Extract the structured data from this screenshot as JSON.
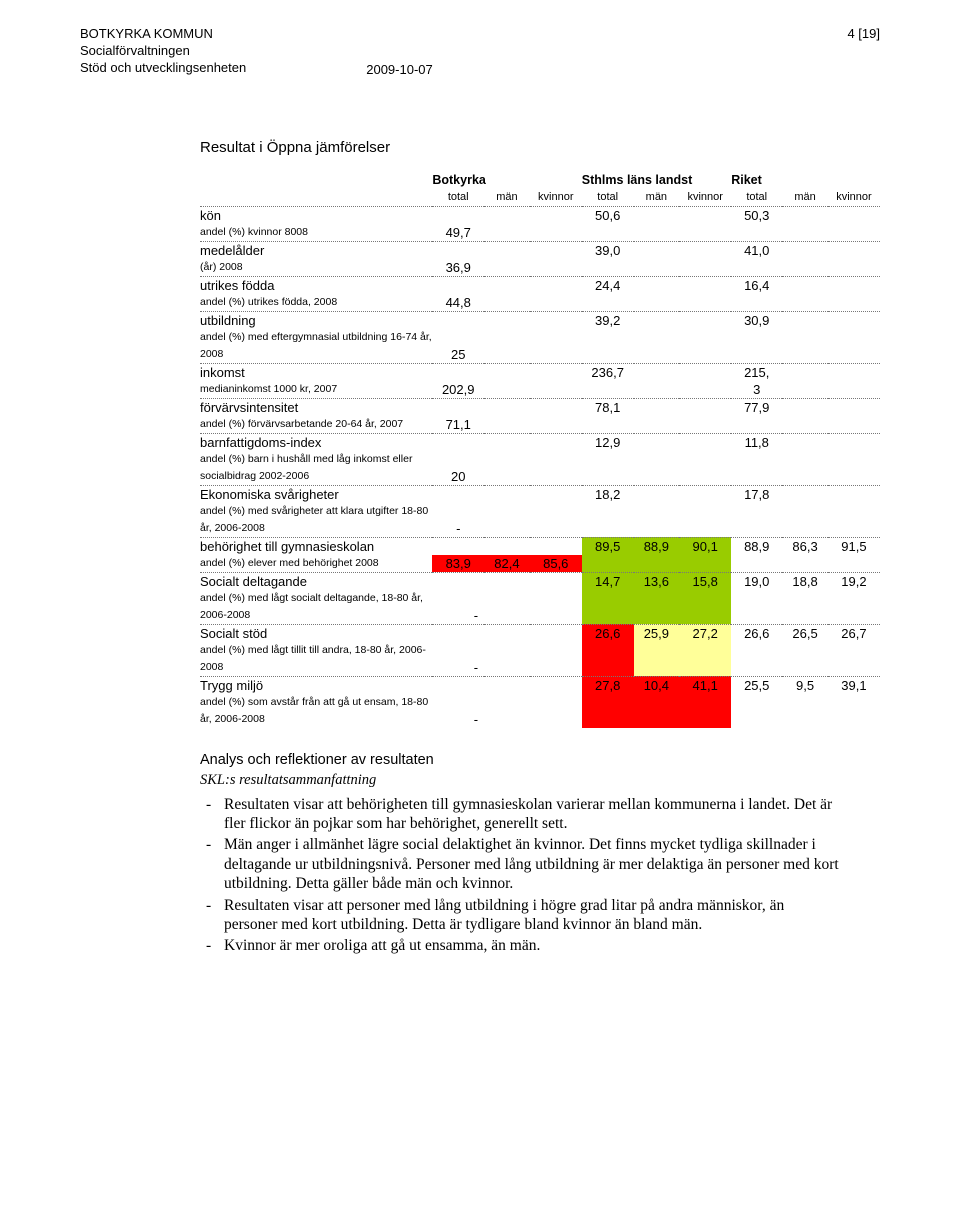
{
  "header": {
    "org1": "BOTKYRKA KOMMUN",
    "org2": "Socialförvaltningen",
    "org3": "Stöd och utvecklingsenheten",
    "date": "2009-10-07",
    "pagenum": "4 [19]"
  },
  "section_title": "Resultat i Öppna jämförelser",
  "groups": {
    "g1": "Botkyrka",
    "g2": "Sthlms läns landst",
    "g3": "Riket"
  },
  "subheaders": {
    "total": "total",
    "man": "män",
    "kvinnor": "kvinnor"
  },
  "colors": {
    "red": "#ff0000",
    "green": "#99cc00",
    "yellow": "#ffff99"
  },
  "rows": [
    {
      "title": "kön",
      "desc": "andel (%) kvinnor 8008",
      "b": [
        "49,7",
        "",
        ""
      ],
      "s": [
        "50,6",
        "",
        ""
      ],
      "r": [
        "50,3",
        "",
        ""
      ],
      "hl": []
    },
    {
      "title": "medelålder",
      "desc": "(år) 2008",
      "b": [
        "36,9",
        "",
        ""
      ],
      "s": [
        "39,0",
        "",
        ""
      ],
      "r": [
        "41,0",
        "",
        ""
      ],
      "hl": []
    },
    {
      "title": "utrikes födda",
      "desc": "andel (%) utrikes födda, 2008",
      "b": [
        "44,8",
        "",
        ""
      ],
      "s": [
        "24,4",
        "",
        ""
      ],
      "r": [
        "16,4",
        "",
        ""
      ],
      "hl": []
    },
    {
      "title": "utbildning",
      "desc": "andel (%) med eftergymnasial utbildning 16-74 år, 2008",
      "b": [
        "25",
        "",
        ""
      ],
      "s": [
        "39,2",
        "",
        ""
      ],
      "r": [
        "30,9",
        "",
        ""
      ],
      "hl": []
    },
    {
      "title": "inkomst",
      "desc": "medianinkomst 1000 kr, 2007",
      "b": [
        "202,9",
        "",
        ""
      ],
      "s": [
        "236,7",
        "",
        ""
      ],
      "r": [
        "215,3",
        "",
        ""
      ],
      "r_split": true,
      "hl": []
    },
    {
      "title": "förvärvsintensitet",
      "desc": "andel (%) förvärvsarbetande 20-64 år, 2007",
      "b": [
        "71,1",
        "",
        ""
      ],
      "s": [
        "78,1",
        "",
        ""
      ],
      "r": [
        "77,9",
        "",
        ""
      ],
      "hl": []
    },
    {
      "title": "barnfattigdoms-index",
      "desc": "andel (%) barn i hushåll med låg inkomst eller socialbidrag 2002-2006",
      "b": [
        "20",
        "",
        ""
      ],
      "s": [
        "12,9",
        "",
        ""
      ],
      "r": [
        "11,8",
        "",
        ""
      ],
      "hl": []
    },
    {
      "title": "Ekonomiska svårigheter",
      "desc": "andel (%) med svårigheter att klara utgifter 18-80 år, 2006-2008",
      "b": [
        "-",
        "",
        ""
      ],
      "s": [
        "18,2",
        "",
        ""
      ],
      "r": [
        "17,8",
        "",
        ""
      ],
      "hl": []
    },
    {
      "title": "behörighet till gymnasieskolan",
      "desc": "andel (%) elever med behörighet 2008",
      "b": [
        "83,9",
        "82,4",
        "85,6"
      ],
      "s": [
        "89,5",
        "88,9",
        "90,1"
      ],
      "r": [
        "88,9",
        "86,3",
        "91,5"
      ],
      "hl": [
        [
          "red",
          "red",
          "red"
        ],
        [
          "green",
          "green",
          "green"
        ],
        [
          "",
          "",
          ""
        ]
      ]
    },
    {
      "title": "Socialt deltagande",
      "desc": "andel (%) med lågt socialt deltagande, 18-80 år, 2006-2008",
      "b": [
        "-",
        "",
        ""
      ],
      "s": [
        "14,7",
        "13,6",
        "15,8"
      ],
      "r": [
        "19,0",
        "18,8",
        "19,2"
      ],
      "hl": [
        [
          "",
          "",
          ""
        ],
        [
          "green",
          "green",
          "green"
        ],
        [
          "",
          "",
          ""
        ]
      ],
      "b_align_right": true
    },
    {
      "title": "Socialt stöd",
      "desc": "andel (%) med lågt tillit till andra, 18-80 år, 2006-2008",
      "b": [
        "-",
        "",
        ""
      ],
      "s": [
        "26,6",
        "25,9",
        "27,2"
      ],
      "r": [
        "26,6",
        "26,5",
        "26,7"
      ],
      "hl": [
        [
          "",
          "",
          ""
        ],
        [
          "red",
          "yellow",
          "yellow"
        ],
        [
          "",
          "",
          ""
        ]
      ],
      "b_align_right": true
    },
    {
      "title": "Trygg miljö",
      "desc": "andel (%) som avstår från att gå ut ensam, 18-80 år, 2006-2008",
      "b": [
        "-",
        "",
        ""
      ],
      "s": [
        "27,8",
        "10,4",
        "41,1"
      ],
      "r": [
        "25,5",
        "9,5",
        "39,1"
      ],
      "hl": [
        [
          "",
          "",
          ""
        ],
        [
          "red",
          "red",
          "red"
        ],
        [
          "",
          "",
          ""
        ]
      ],
      "b_align_right": true
    }
  ],
  "analysis": {
    "heading": "Analys och reflektioner av resultaten",
    "subheading": "SKL:s resultatsammanfattning",
    "bullets": [
      "Resultaten visar att behörigheten till gymnasieskolan varierar mellan kommunerna i landet. Det är fler flickor än pojkar som har behörighet, generellt sett.",
      "Män anger i allmänhet lägre social delaktighet än kvinnor. Det finns mycket tydliga skillnader i deltagande ur utbildningsnivå. Personer med lång utbildning är mer delaktiga än personer med kort utbildning. Detta gäller både män och kvinnor.",
      "Resultaten visar att personer med lång utbildning i högre grad litar på andra människor, än personer med kort utbildning. Detta är tydligare bland kvinnor än bland män.",
      "Kvinnor är mer oroliga att gå ut ensamma, än män."
    ]
  }
}
